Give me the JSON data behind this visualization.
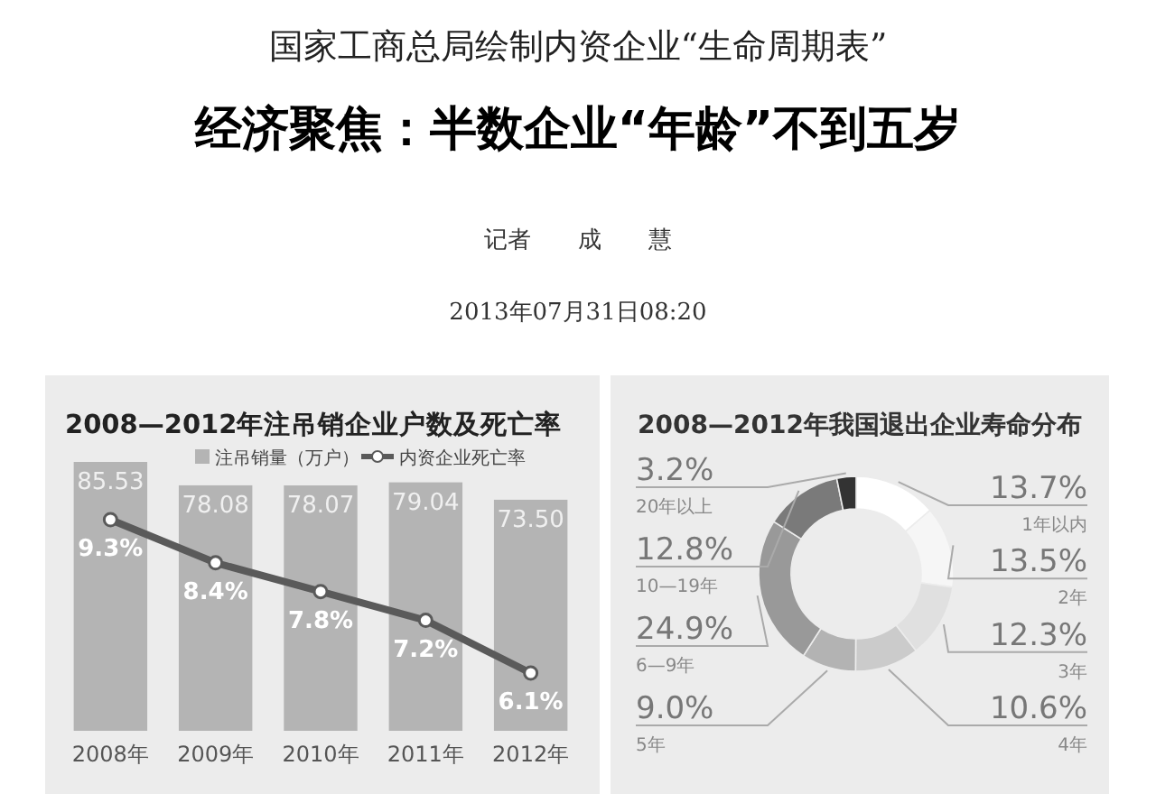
{
  "chart_data": [
    {
      "type": "other",
      "subtitle": "国家工商总局绘制内资企业“生命周期表”",
      "title": "经济聚焦：半数企业“年龄”不到五岁",
      "annotations": [
        "记者　　成　　慧",
        "2013年07月31日08:20"
      ]
    },
    {
      "type": "bar",
      "title": "2008—2012年注吊销企业户数及死亡率",
      "categories": [
        "2008年",
        "2009年",
        "2010年",
        "2011年",
        "2012年"
      ],
      "tick_labels": "x",
      "legend": "top",
      "marker": "circle",
      "series": [
        {
          "name": "注吊销量（万户）",
          "type": "bar",
          "color": "#b4b4b4",
          "values": [
            85.53,
            78.08,
            78.07,
            79.04,
            73.5
          ],
          "value_labels": [
            "85.53",
            "78.08",
            "78.07",
            "79.04",
            "73.50"
          ]
        },
        {
          "name": "内资企业死亡率",
          "type": "line",
          "axis": "y2",
          "color": "#5a5a5a",
          "values": [
            9.3,
            8.4,
            7.8,
            7.2,
            6.1
          ],
          "value_labels": [
            "9.3%",
            "8.4%",
            "7.8%",
            "7.2%",
            "6.1%"
          ]
        }
      ]
    },
    {
      "type": "donut",
      "title": "2008—2012年我国退出企业寿命分布",
      "categories": [
        "1年以内",
        "2年",
        "3年",
        "4年",
        "5年",
        "6—9年",
        "10—19年",
        "20年以上"
      ],
      "values": [
        13.7,
        13.5,
        12.3,
        10.6,
        9.0,
        24.9,
        12.8,
        3.2
      ],
      "value_labels": [
        "13.7%",
        "13.5%",
        "12.3%",
        "10.6%",
        "9.0%",
        "24.9%",
        "12.8%",
        "3.2%"
      ],
      "colors": [
        "#ffffff",
        "#f6f6f6",
        "#e0e0e0",
        "#cbcbcb",
        "#b3b3b3",
        "#999999",
        "#7a7a7a",
        "#333333"
      ]
    }
  ]
}
